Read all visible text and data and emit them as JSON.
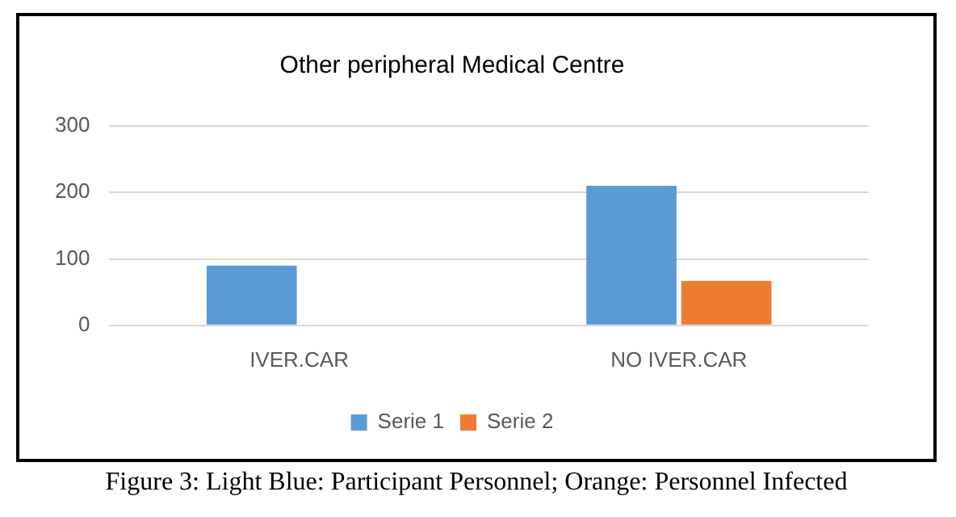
{
  "chart_data": {
    "type": "bar",
    "title": "Other peripheral Medical Centre",
    "categories": [
      "IVER.CAR",
      "NO IVER.CAR"
    ],
    "series": [
      {
        "name": "Serie 1",
        "color": "#5b9bd5",
        "values": [
          90,
          210
        ]
      },
      {
        "name": "Serie 2",
        "color": "#ed7d31",
        "values": [
          0,
          67
        ]
      }
    ],
    "ylim": [
      0,
      300
    ],
    "yticks": [
      0,
      100,
      200,
      300
    ],
    "grid": "y",
    "legend": "bottom",
    "annotations": [
      "Figure 3: Light Blue: Participant Personnel; Orange: Personnel Infected"
    ]
  }
}
